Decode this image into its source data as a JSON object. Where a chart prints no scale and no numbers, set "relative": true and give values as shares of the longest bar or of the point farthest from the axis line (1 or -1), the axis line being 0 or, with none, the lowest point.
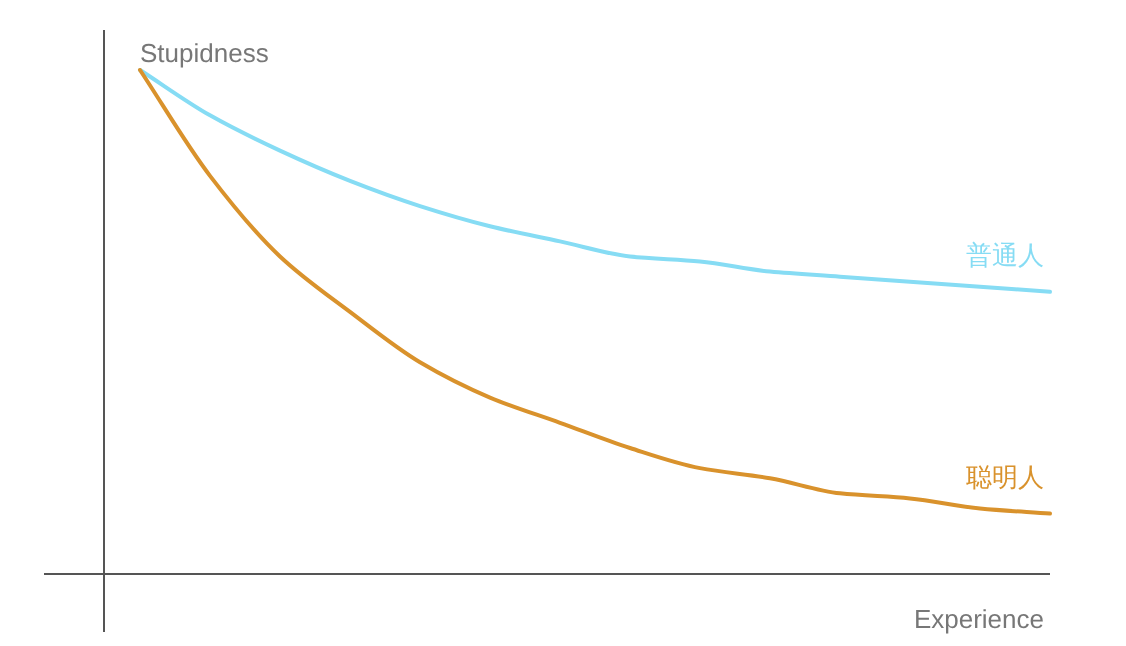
{
  "chart_data": {
    "type": "line",
    "relative": true,
    "ylabel": "Stupidness",
    "xlabel": "Experience",
    "categories": [
      null,
      null,
      null,
      null,
      null,
      null,
      null,
      null,
      null,
      null,
      null,
      null,
      null,
      null
    ],
    "series": [
      {
        "name": "普通人",
        "color": "#86dcf4",
        "values": [
          1,
          0.91,
          0.84,
          0.78,
          0.73,
          0.69,
          0.66,
          0.63,
          0.62,
          0.6,
          0.59,
          0.58,
          0.57,
          0.56
        ]
      },
      {
        "name": "聪明人",
        "color": "#d9922c",
        "values": [
          1,
          0.79,
          0.63,
          0.52,
          0.42,
          0.35,
          0.3,
          0.25,
          0.21,
          0.19,
          0.16,
          0.15,
          0.13,
          0.12
        ]
      }
    ]
  }
}
